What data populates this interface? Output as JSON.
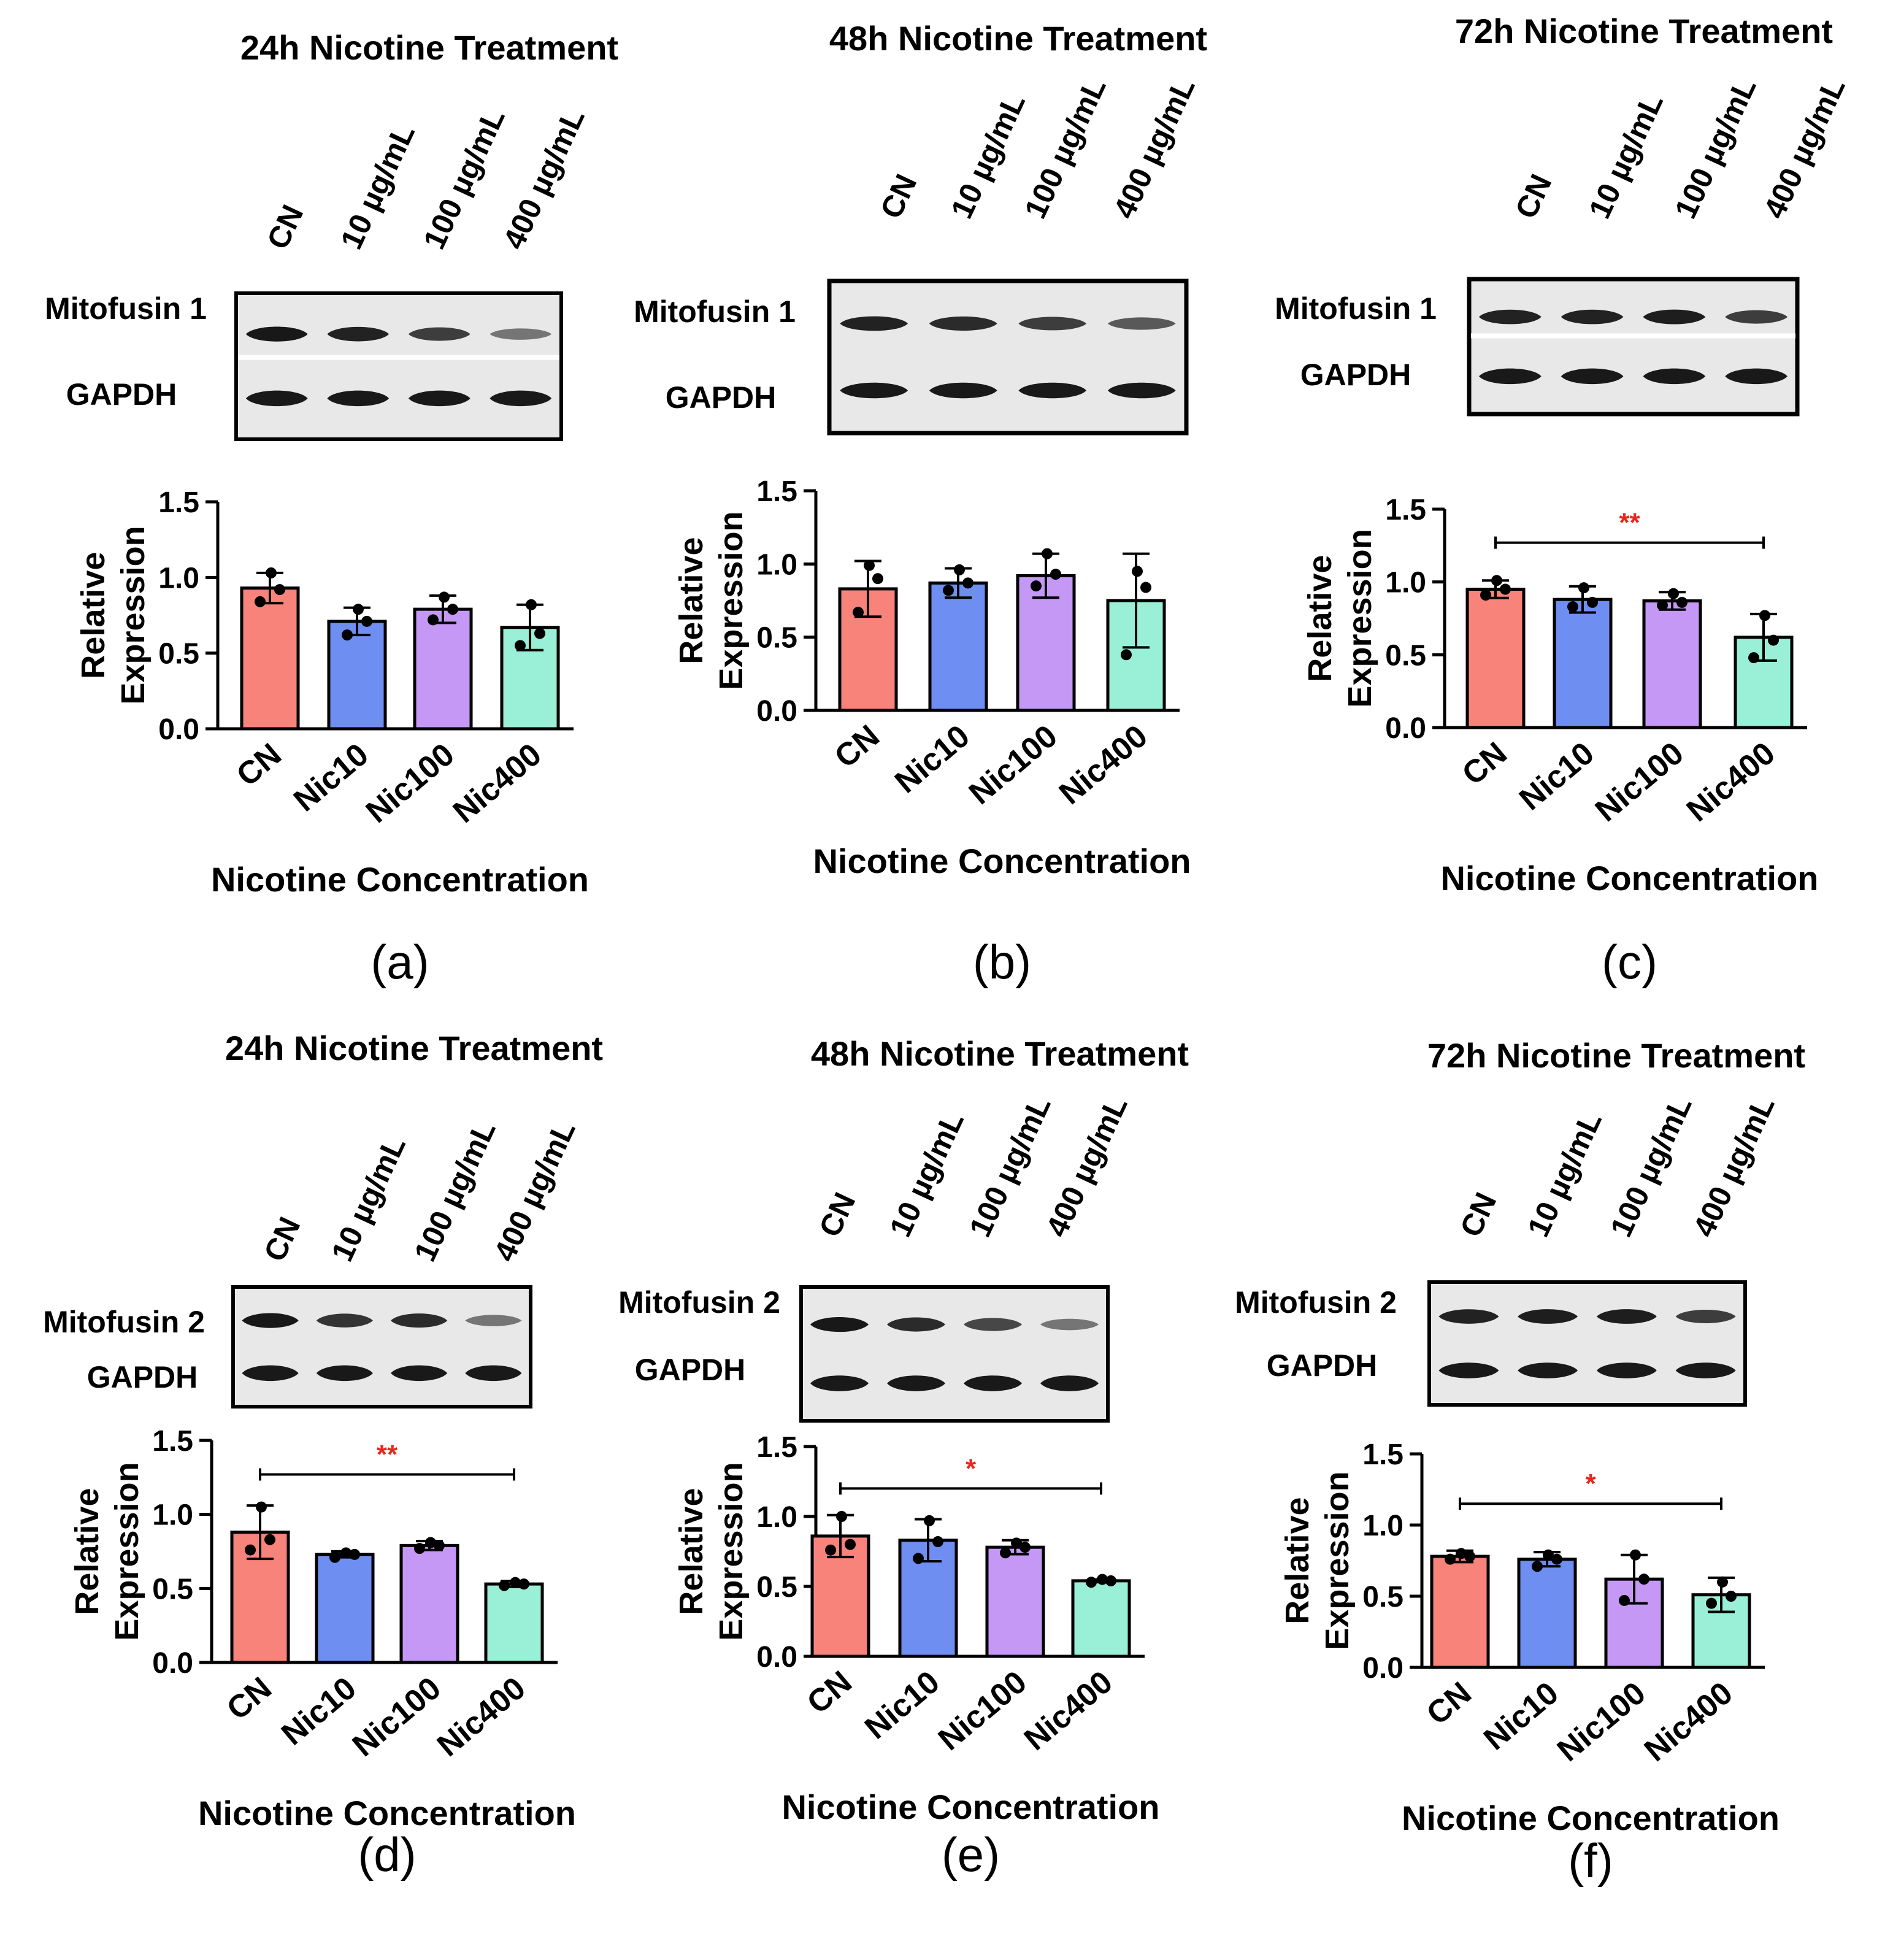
{
  "figure": {
    "y_axis_label_line1": "Relative",
    "y_axis_label_line2": "Expression",
    "x_axis_label": "Nicotine Concentration",
    "blot_lane_labels": [
      "CN",
      "10 µg/mL",
      "100 µg/mL",
      "400 µg/mL"
    ],
    "loading_control": "GAPDH"
  },
  "colors": {
    "CN": "#F8837A",
    "Nic10": "#6F8EF2",
    "Nic100": "#C598F5",
    "Nic400": "#9AF0D6",
    "significance": "#E8261E"
  },
  "chart_data": [
    {
      "type": "bar",
      "panel": "(a)",
      "title": "24h Nicotine Treatment",
      "protein": "Mitofusin 1",
      "categories": [
        "CN",
        "Nic10",
        "Nic100",
        "Nic400"
      ],
      "values": [
        0.93,
        0.71,
        0.79,
        0.67
      ],
      "error": [
        0.1,
        0.09,
        0.09,
        0.15
      ],
      "points": [
        [
          0.84,
          0.92,
          1.03
        ],
        [
          0.62,
          0.71,
          0.79
        ],
        [
          0.72,
          0.79,
          0.87
        ],
        [
          0.55,
          0.63,
          0.82
        ]
      ],
      "xlabel": "Nicotine Concentration",
      "ylabel": "Relative Expression",
      "ylim": [
        0,
        1.5
      ],
      "yticks": [
        "0.0",
        "0.5",
        "1.0",
        "1.5"
      ],
      "significance": null
    },
    {
      "type": "bar",
      "panel": "(b)",
      "title": "48h Nicotine Treatment",
      "protein": "Mitofusin 1",
      "categories": [
        "CN",
        "Nic10",
        "Nic100",
        "Nic400"
      ],
      "values": [
        0.83,
        0.87,
        0.92,
        0.75
      ],
      "error": [
        0.19,
        0.1,
        0.15,
        0.32
      ],
      "points": [
        [
          0.67,
          0.9,
          0.99
        ],
        [
          0.82,
          0.87,
          0.96
        ],
        [
          0.85,
          0.93,
          1.07
        ],
        [
          0.38,
          0.84,
          0.95
        ]
      ],
      "xlabel": "Nicotine Concentration",
      "ylabel": "Relative Expression",
      "ylim": [
        0,
        1.5
      ],
      "yticks": [
        "0.0",
        "0.5",
        "1.0",
        "1.5"
      ],
      "significance": null
    },
    {
      "type": "bar",
      "panel": "(c)",
      "title": "72h Nicotine Treatment",
      "protein": "Mitofusin 1",
      "categories": [
        "CN",
        "Nic10",
        "Nic100",
        "Nic400"
      ],
      "values": [
        0.95,
        0.88,
        0.87,
        0.62
      ],
      "error": [
        0.06,
        0.09,
        0.06,
        0.16
      ],
      "points": [
        [
          0.91,
          0.95,
          1.01
        ],
        [
          0.83,
          0.86,
          0.96
        ],
        [
          0.84,
          0.86,
          0.92
        ],
        [
          0.48,
          0.6,
          0.77
        ]
      ],
      "xlabel": "Nicotine Concentration",
      "ylabel": "Relative Expression",
      "ylim": [
        0,
        1.5
      ],
      "yticks": [
        "0.0",
        "0.5",
        "1.0",
        "1.5"
      ],
      "significance": {
        "from": 0,
        "to": 3,
        "label": "**",
        "y": 1.27
      }
    },
    {
      "type": "bar",
      "panel": "(d)",
      "title": "24h Nicotine Treatment",
      "protein": "Mitofusin 2",
      "categories": [
        "CN",
        "Nic10",
        "Nic100",
        "Nic400"
      ],
      "values": [
        0.88,
        0.73,
        0.79,
        0.53
      ],
      "error": [
        0.18,
        0.02,
        0.03,
        0.02
      ],
      "points": [
        [
          0.76,
          0.83,
          1.05
        ],
        [
          0.71,
          0.73,
          0.74
        ],
        [
          0.77,
          0.79,
          0.81
        ],
        [
          0.52,
          0.53,
          0.54
        ]
      ],
      "xlabel": "Nicotine Concentration",
      "ylabel": "Relative Expression",
      "ylim": [
        0,
        1.5
      ],
      "yticks": [
        "0.0",
        "0.5",
        "1.0",
        "1.5"
      ],
      "significance": {
        "from": 0,
        "to": 3,
        "label": "**",
        "y": 1.27
      }
    },
    {
      "type": "bar",
      "panel": "(e)",
      "title": "48h Nicotine Treatment",
      "protein": "Mitofusin 2",
      "categories": [
        "CN",
        "Nic10",
        "Nic100",
        "Nic400"
      ],
      "values": [
        0.86,
        0.83,
        0.78,
        0.54
      ],
      "error": [
        0.15,
        0.15,
        0.05,
        0.01
      ],
      "points": [
        [
          0.76,
          0.8,
          1.0
        ],
        [
          0.7,
          0.82,
          0.97
        ],
        [
          0.74,
          0.78,
          0.81
        ],
        [
          0.53,
          0.54,
          0.55
        ]
      ],
      "xlabel": "Nicotine Concentration",
      "ylabel": "Relative Expression",
      "ylim": [
        0,
        1.5
      ],
      "yticks": [
        "0.0",
        "0.5",
        "1.0",
        "1.5"
      ],
      "significance": {
        "from": 0,
        "to": 3,
        "label": "*",
        "y": 1.2
      }
    },
    {
      "type": "bar",
      "panel": "(f)",
      "title": "72h Nicotine Treatment",
      "protein": "Mitofusin 2",
      "categories": [
        "CN",
        "Nic10",
        "Nic100",
        "Nic400"
      ],
      "values": [
        0.78,
        0.76,
        0.62,
        0.51
      ],
      "error": [
        0.04,
        0.05,
        0.17,
        0.12
      ],
      "points": [
        [
          0.76,
          0.78,
          0.8
        ],
        [
          0.71,
          0.76,
          0.79
        ],
        [
          0.47,
          0.62,
          0.79
        ],
        [
          0.45,
          0.5,
          0.6
        ]
      ],
      "xlabel": "Nicotine Concentration",
      "ylabel": "Relative Expression",
      "ylim": [
        0,
        1.5
      ],
      "yticks": [
        "0.0",
        "0.5",
        "1.0",
        "1.5"
      ],
      "significance": {
        "from": 0,
        "to": 3,
        "label": "*",
        "y": 1.15
      }
    }
  ],
  "blots": [
    {
      "panel": "(a)",
      "top_intensity": [
        0.95,
        0.9,
        0.75,
        0.45
      ]
    },
    {
      "panel": "(b)",
      "top_intensity": [
        0.9,
        0.85,
        0.75,
        0.6
      ]
    },
    {
      "panel": "(c)",
      "top_intensity": [
        0.9,
        0.9,
        0.92,
        0.75
      ]
    },
    {
      "panel": "(d)",
      "top_intensity": [
        0.95,
        0.8,
        0.85,
        0.45
      ]
    },
    {
      "panel": "(e)",
      "top_intensity": [
        0.95,
        0.85,
        0.7,
        0.45
      ]
    },
    {
      "panel": "(f)",
      "top_intensity": [
        0.9,
        0.92,
        0.92,
        0.75
      ]
    }
  ]
}
